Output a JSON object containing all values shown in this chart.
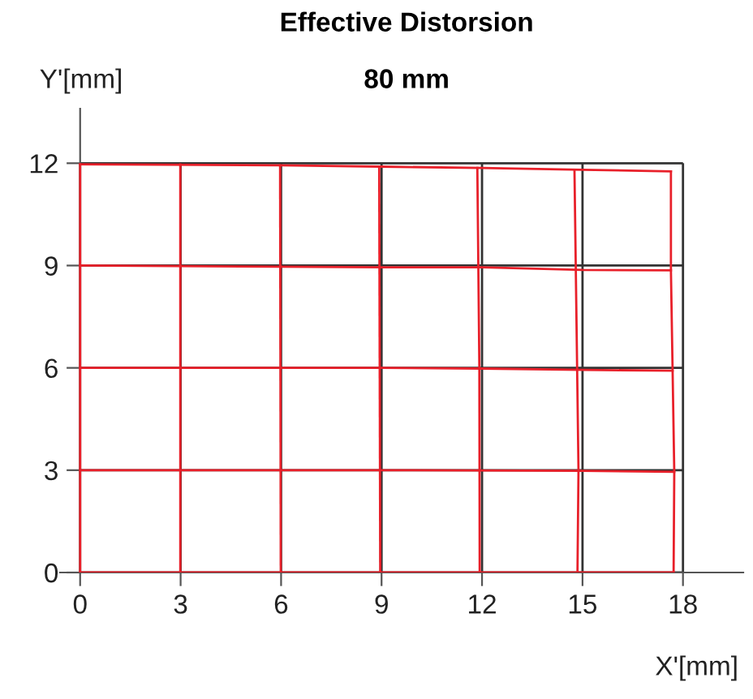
{
  "chart_data": {
    "type": "line",
    "title": "Effective Distorsion",
    "subtitle": "80 mm",
    "xlabel": "X'[mm]",
    "ylabel": "Y'[mm]",
    "xlim": [
      -0.6,
      19.8
    ],
    "ylim": [
      0,
      13.6
    ],
    "xticks": [
      0,
      3,
      6,
      9,
      12,
      15,
      18
    ],
    "yticks": [
      0,
      3,
      6,
      9,
      12
    ],
    "grid": true,
    "line_style": "solid",
    "marker": "none",
    "series": [
      {
        "color": "#e8202a",
        "x": [
          0,
          6,
          9,
          12,
          15,
          17.64
        ],
        "values": [
          11.97,
          11.94,
          11.9,
          11.86,
          11.81,
          11.76
        ]
      },
      {
        "color": "#e8202a",
        "x": [
          0,
          9,
          12,
          15,
          17.64
        ],
        "values": [
          9.0,
          8.95,
          8.95,
          8.87,
          8.86
        ]
      },
      {
        "color": "#e8202a",
        "x": [
          0,
          9,
          12,
          15,
          17.69
        ],
        "values": [
          6.0,
          6.0,
          5.98,
          5.94,
          5.92
        ]
      },
      {
        "color": "#e8202a",
        "x": [
          0,
          9,
          15,
          17.74
        ],
        "values": [
          3.0,
          3.0,
          2.98,
          2.95
        ]
      },
      {
        "color": "#e8202a",
        "x": [
          0,
          17.72
        ],
        "values": [
          0,
          0
        ]
      },
      {
        "color": "#e8202a",
        "x": [
          0,
          0
        ],
        "values": [
          0,
          11.97
        ]
      },
      {
        "color": "#e8202a",
        "x": [
          2.99,
          2.99
        ],
        "values": [
          0,
          11.96
        ]
      },
      {
        "color": "#e8202a",
        "x": [
          5.99,
          5.97
        ],
        "values": [
          0,
          11.94
        ]
      },
      {
        "color": "#e8202a",
        "x": [
          8.96,
          8.93
        ],
        "values": [
          0,
          11.9
        ]
      },
      {
        "color": "#e8202a",
        "x": [
          11.93,
          11.92,
          11.86
        ],
        "values": [
          0,
          6.0,
          11.86
        ]
      },
      {
        "color": "#e8202a",
        "x": [
          14.85,
          14.88,
          14.76
        ],
        "values": [
          0,
          3.0,
          11.81
        ]
      },
      {
        "color": "#e8202a",
        "x": [
          17.72,
          17.74,
          17.69,
          17.64,
          17.64
        ],
        "values": [
          0,
          2.95,
          5.92,
          8.86,
          11.76
        ]
      }
    ]
  }
}
